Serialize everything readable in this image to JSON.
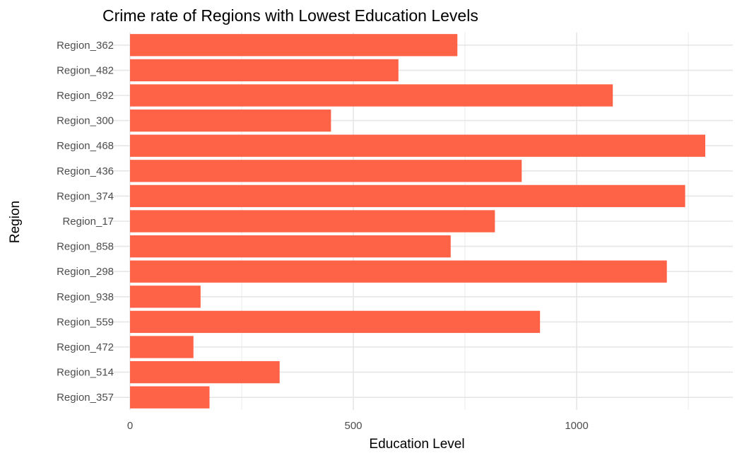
{
  "chart_data": {
    "type": "bar",
    "orientation": "horizontal",
    "title": "Crime rate of Regions with Lowest Education Levels",
    "xlabel": "Education Level",
    "ylabel": "Region",
    "categories": [
      "Region_362",
      "Region_482",
      "Region_692",
      "Region_300",
      "Region_468",
      "Region_436",
      "Region_374",
      "Region_17",
      "Region_858",
      "Region_298",
      "Region_938",
      "Region_559",
      "Region_472",
      "Region_514",
      "Region_357"
    ],
    "values": [
      733,
      601,
      1081,
      450,
      1288,
      877,
      1243,
      817,
      718,
      1202,
      158,
      918,
      142,
      335,
      178
    ],
    "xlim": [
      0,
      1300
    ],
    "x_ticks": [
      0,
      500,
      1000
    ],
    "x_minor_ticks": [
      250,
      750,
      1250
    ],
    "bar_color": "#FF6347",
    "grid": true,
    "legend": "none"
  }
}
